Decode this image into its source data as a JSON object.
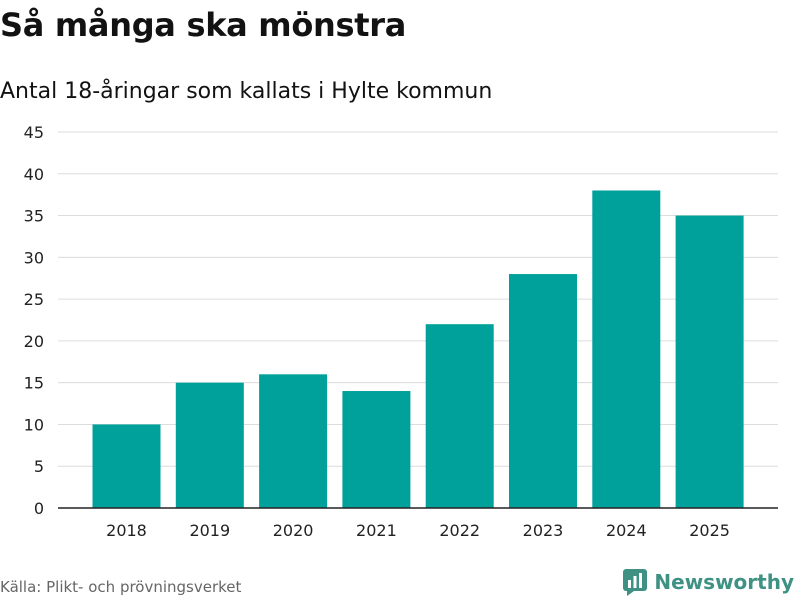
{
  "title": "Så många ska mönstra",
  "subtitle": "Antal 18-åringar som kallats i Hylte kommun",
  "source": "Källa: Plikt- och prövningsverket",
  "brand": "Newsworthy",
  "colors": {
    "bar": "#00a19a",
    "grid": "#dcdcdc",
    "axis": "#222222",
    "brand": "#3f9184"
  },
  "chart_data": {
    "type": "bar",
    "title": "Så många ska mönstra",
    "subtitle": "Antal 18-åringar som kallats i Hylte kommun",
    "categories": [
      "2018",
      "2019",
      "2020",
      "2021",
      "2022",
      "2023",
      "2024",
      "2025"
    ],
    "values": [
      10,
      15,
      16,
      14,
      22,
      28,
      38,
      35
    ],
    "yticks": [
      0,
      5,
      10,
      15,
      20,
      25,
      30,
      35,
      40,
      45
    ],
    "ylim": [
      0,
      45
    ],
    "xlabel": "",
    "ylabel": "",
    "grid": true,
    "legend": "none"
  }
}
